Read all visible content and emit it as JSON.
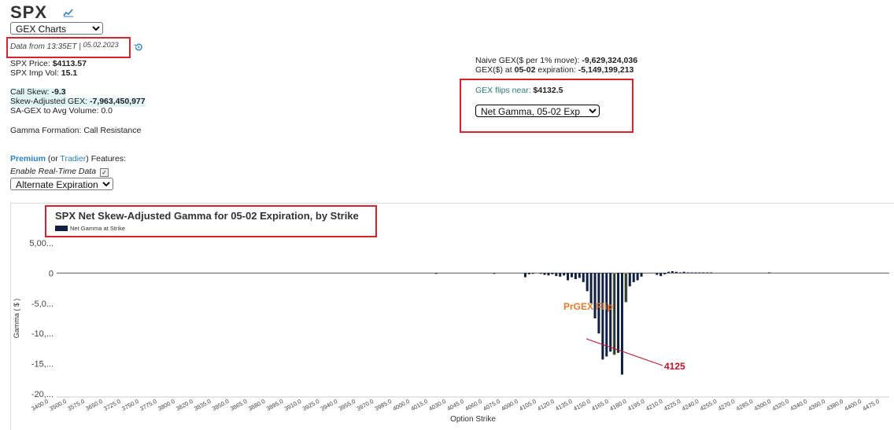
{
  "header": {
    "ticker": "SPX",
    "chart_select": "GEX Charts",
    "data_from": "Data from 13:35ET |",
    "data_date": "05.02.2023"
  },
  "stats": {
    "price_label": "SPX Price: ",
    "price_value": "$4113.57",
    "impvol_label": "SPX Imp Vol: ",
    "impvol_value": "15.1",
    "callskew_label": "Call Skew: ",
    "callskew_value": "-9.3",
    "sagex_label": "Skew-Adjusted GEX: ",
    "sagex_value": "-7,963,450,977",
    "sagex_avg": "SA-GEX to Avg Volume: 0.0",
    "formation": "Gamma Formation: Call Resistance"
  },
  "premium": {
    "premium_link": "Premium",
    "or_text": " (or ",
    "tradier_link": "Tradier",
    "features_text": ") Features:",
    "realtime_label": "Enable Real-Time Data",
    "alt_select": "Alternate Expiration"
  },
  "right": {
    "naive_label": "Naive GEX($ per 1% move): ",
    "naive_value": "-9,629,324,036",
    "gex_label": "GEX($) at ",
    "gex_exp": "05-02",
    "gex_label2": " expiration: ",
    "gex_value": "-5,149,199,213",
    "flip_label": "GEX flips near: ",
    "flip_value": "$4132.5",
    "net_select": "Net Gamma, 05-02 Exp"
  },
  "colors": {
    "bar": "#0f2041",
    "highlight_bar": "#9c9b5e",
    "annotation": "#e87a2d",
    "redline": "#c0142b",
    "redbox": "#d9232e"
  },
  "chart_data": {
    "type": "bar",
    "title": "SPX Net Skew-Adjusted Gamma for 05-02 Expiration, by Strike",
    "legend": "Net Gamma at Strike",
    "xlabel": "Option Strike",
    "ylabel": "Gamma ( $ )",
    "ylim": [
      -20.5,
      5.5
    ],
    "yticks": [
      {
        "v": 5,
        "label": "5,00..."
      },
      {
        "v": 0,
        "label": "0"
      },
      {
        "v": -5,
        "label": "-5,0..."
      },
      {
        "v": -10,
        "label": "-10,..."
      },
      {
        "v": -15,
        "label": "-15,..."
      },
      {
        "v": -20,
        "label": "-20,..."
      }
    ],
    "xmin": 3400,
    "xmax": 4475,
    "xtick_labels": [
      "3400.0",
      "3500.0",
      "3575.0",
      "3650.0",
      "3725.0",
      "3750.0",
      "3775.0",
      "3800.0",
      "3820.0",
      "3835.0",
      "3850.0",
      "3865.0",
      "3880.0",
      "3895.0",
      "3910.0",
      "3925.0",
      "3940.0",
      "3955.0",
      "3970.0",
      "3985.0",
      "4000.0",
      "4015.0",
      "4030.0",
      "4045.0",
      "4060.0",
      "4075.0",
      "4090.0",
      "4105.0",
      "4120.0",
      "4135.0",
      "4150.0",
      "4165.0",
      "4180.0",
      "4195.0",
      "4210.0",
      "4225.0",
      "4240.0",
      "4255.0",
      "4270.0",
      "4285.0",
      "4300.0",
      "4320.0",
      "4340.0",
      "4360.0",
      "4380.0",
      "4400.0",
      "4475.0"
    ],
    "strikes": [
      3890,
      3965,
      4005,
      4010,
      4015,
      4025,
      4030,
      4035,
      4040,
      4045,
      4050,
      4055,
      4060,
      4065,
      4070,
      4075,
      4080,
      4085,
      4090,
      4095,
      4100,
      4105,
      4110,
      4115,
      4120,
      4125,
      4130,
      4135,
      4140,
      4145,
      4150,
      4155,
      4175,
      4180,
      4185,
      4190,
      4195,
      4200,
      4205,
      4210,
      4215,
      4220,
      4225,
      4230,
      4235,
      4240,
      4245,
      4320
    ],
    "values": [
      -0.1,
      -0.1,
      -0.7,
      -0.2,
      -0.1,
      -0.1,
      -0.3,
      -0.4,
      -0.2,
      -0.5,
      -0.6,
      -0.4,
      -1.2,
      -0.7,
      -1.0,
      -0.8,
      -1.5,
      -3.0,
      -5.0,
      -7.5,
      -10.0,
      -14.3,
      -13.8,
      -13.0,
      -13.5,
      -13.2,
      -16.8,
      -4.8,
      -2.2,
      -1.5,
      -1.2,
      -0.6,
      -0.3,
      -0.5,
      -0.2,
      0.2,
      0.3,
      0.2,
      0.1,
      0.2,
      0.1,
      0.1,
      0.1,
      0.1,
      0.1,
      0.1,
      0.1,
      0.1
    ],
    "highlight_strikes": [
      4120,
      4135
    ],
    "annotations": [
      {
        "text": "PrGEX Flip"
      },
      {
        "text": "4125"
      }
    ]
  }
}
